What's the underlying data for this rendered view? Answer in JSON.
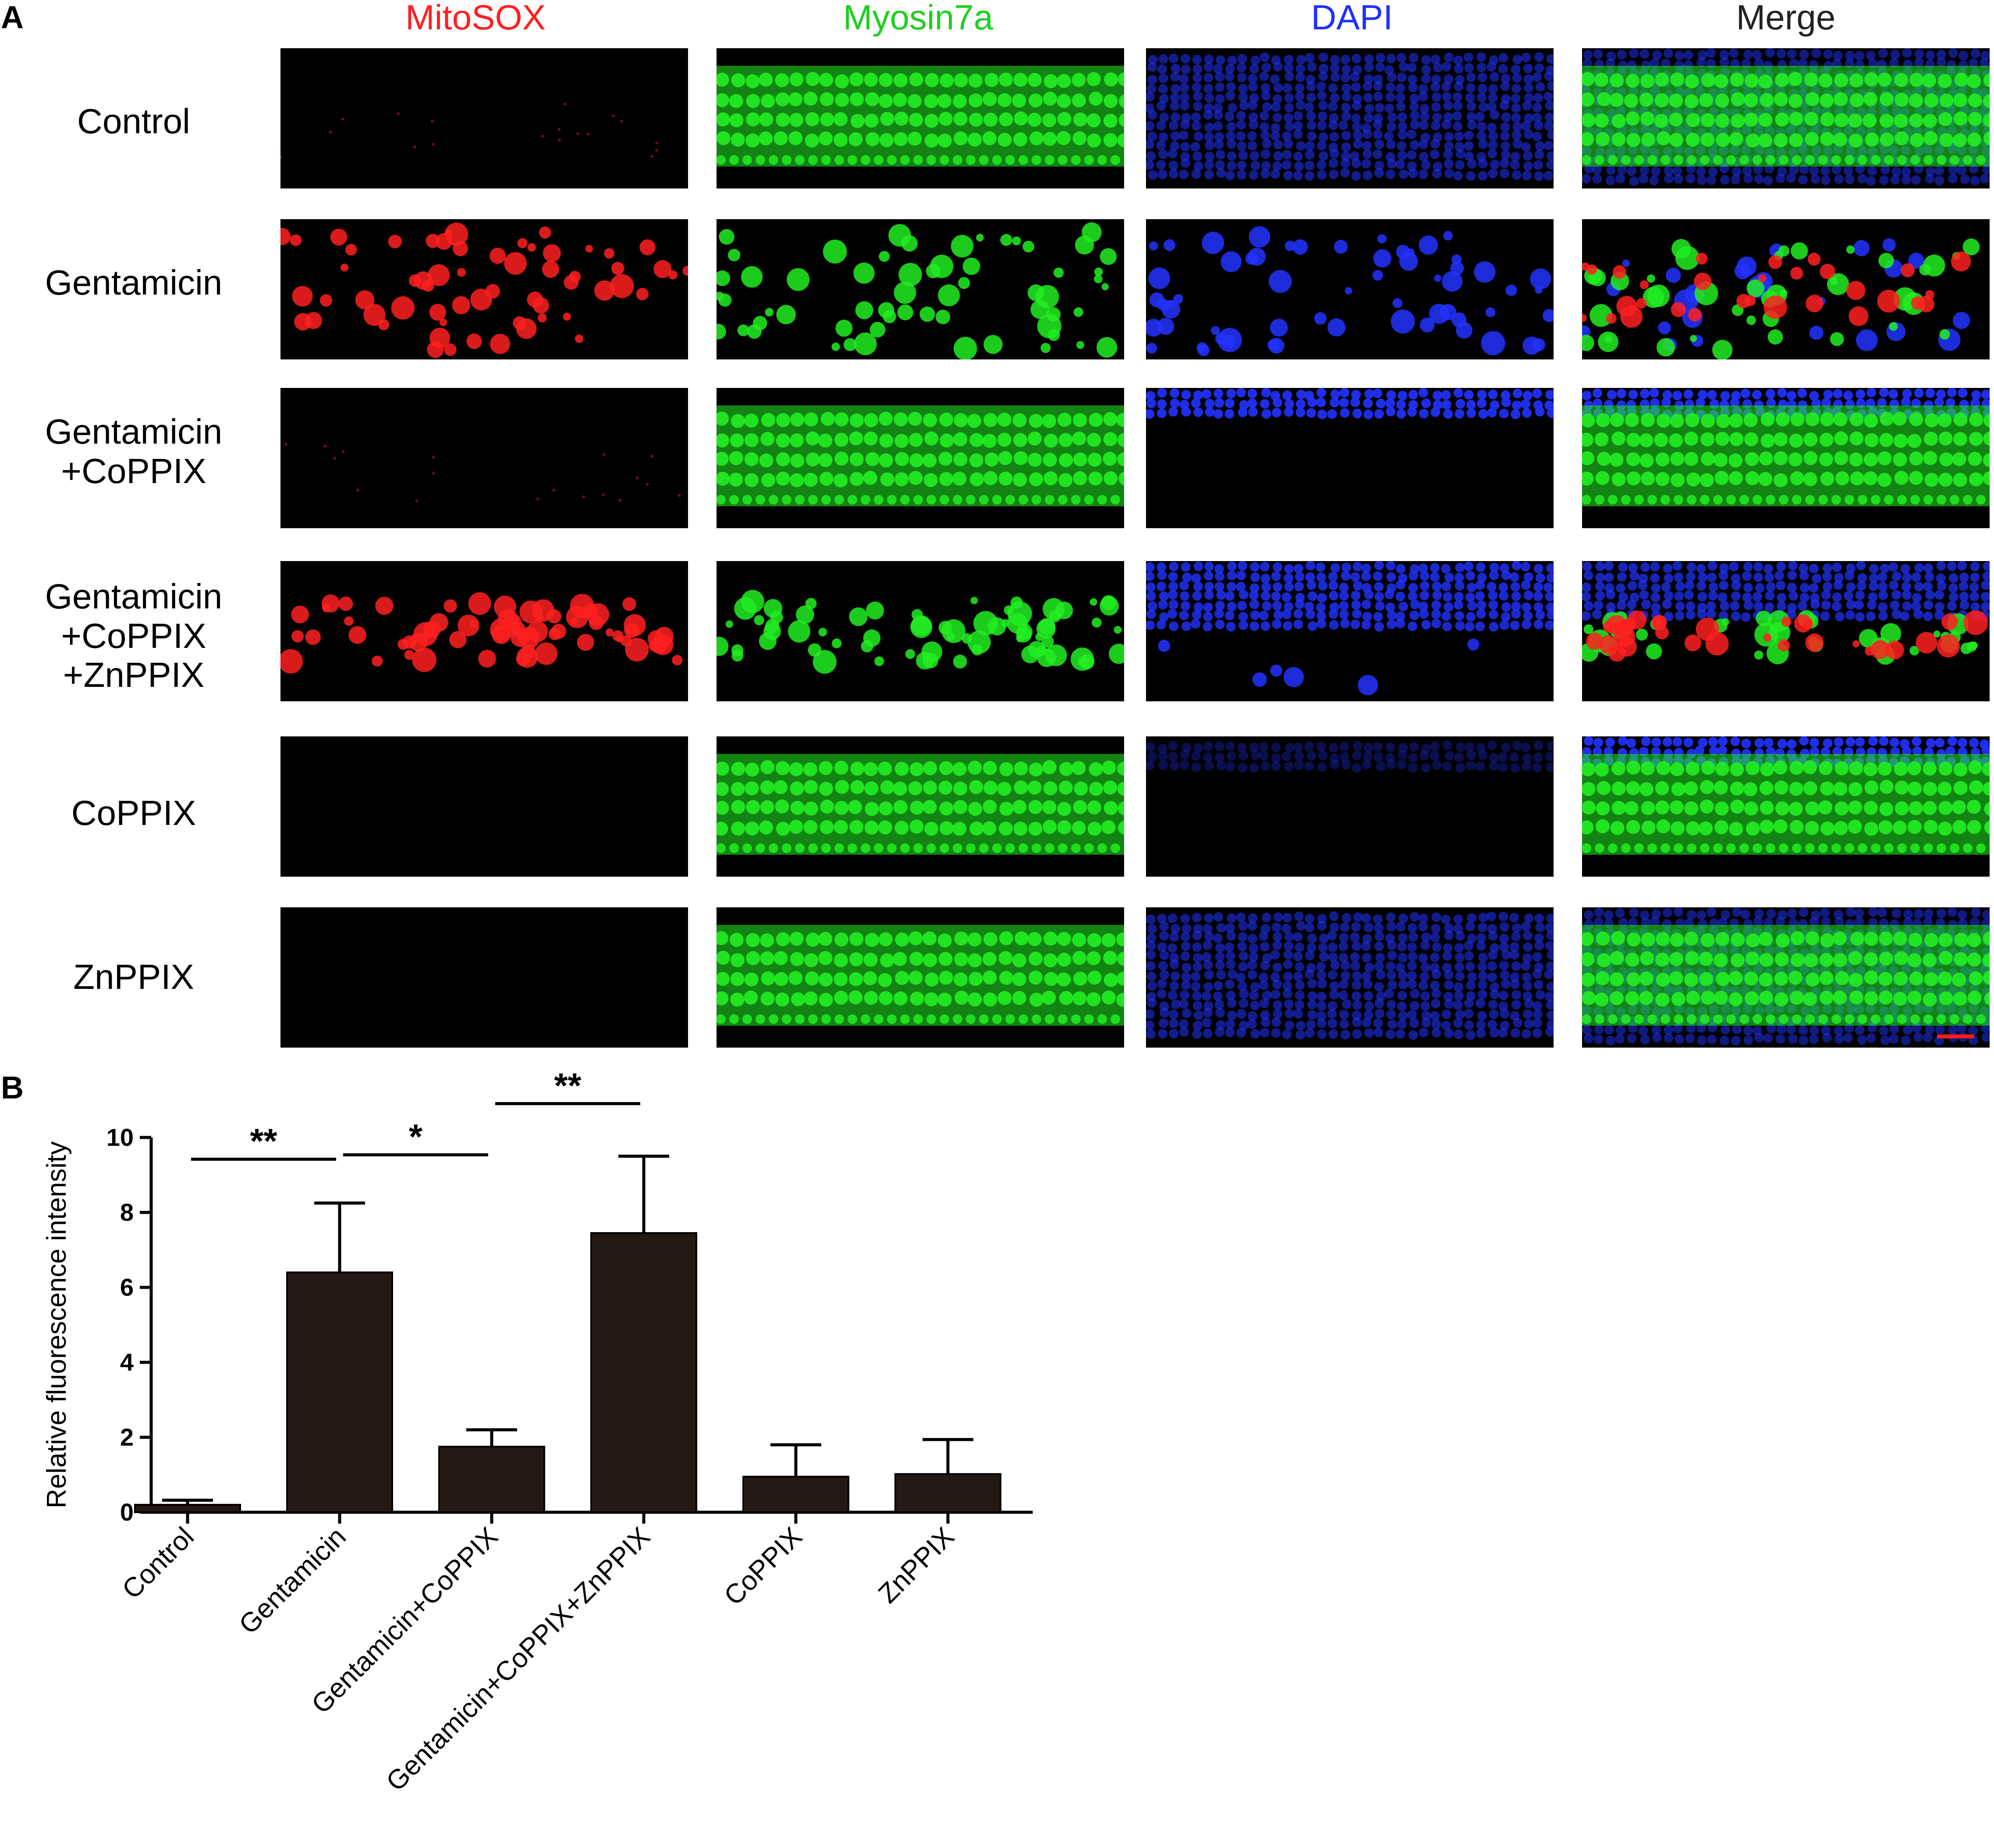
{
  "panel_a": {
    "letter": "A",
    "columns": [
      {
        "label": "MitoSOX",
        "color": "#ff1f1f"
      },
      {
        "label": "Myosin7a",
        "color": "#1fcf1f"
      },
      {
        "label": "DAPI",
        "color": "#1f2fff"
      },
      {
        "label": "Merge",
        "color": "#222222"
      }
    ],
    "rows": [
      {
        "lines": [
          "Control"
        ]
      },
      {
        "lines": [
          "Gentamicin"
        ]
      },
      {
        "lines": [
          "Gentamicin",
          "+CoPPIX"
        ]
      },
      {
        "lines": [
          "Gentamicin",
          "+CoPPIX",
          "+ZnPPIX"
        ]
      },
      {
        "lines": [
          "CoPPIX"
        ]
      },
      {
        "lines": [
          "ZnPPIX"
        ]
      }
    ]
  },
  "panel_b": {
    "letter": "B"
  },
  "chart_data": {
    "type": "bar",
    "title": "",
    "xlabel": "",
    "ylabel": "Relative fluorescence intensity",
    "ylim": [
      0,
      10
    ],
    "yticks": [
      "0",
      "2",
      "4",
      "6",
      "8",
      "10"
    ],
    "categories": [
      "Control",
      "Gentamicin",
      "Gentamicin+CoPPIX",
      "Gentamicin+CoPPIX+ZnPPIX",
      "CoPPIX",
      "ZnPPIX"
    ],
    "values": [
      0.2,
      6.4,
      1.75,
      7.45,
      0.95,
      1.02
    ],
    "error": [
      0.12,
      1.85,
      0.45,
      2.05,
      0.85,
      0.92
    ],
    "significance": [
      {
        "from": 0,
        "to": 1,
        "label": "**"
      },
      {
        "from": 1,
        "to": 2,
        "label": "*"
      },
      {
        "from": 2,
        "to": 3,
        "label": "**"
      }
    ],
    "bar_color": "#231a14",
    "grid": false
  }
}
